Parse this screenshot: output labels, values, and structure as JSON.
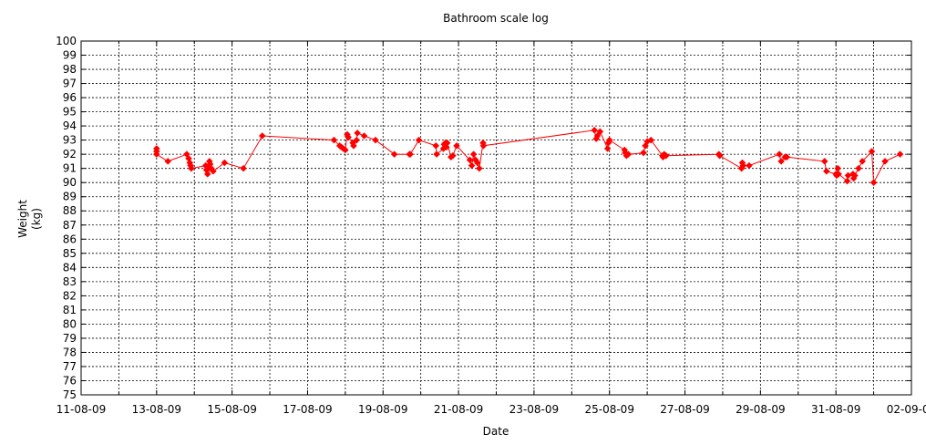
{
  "chart_data": {
    "type": "line",
    "title": "Bathroom scale log",
    "xlabel": "Date",
    "ylabel": [
      "Weight",
      "(kg)"
    ],
    "ylim": [
      75,
      100
    ],
    "xlim_days": [
      0,
      22
    ],
    "y_ticks": [
      75,
      76,
      77,
      78,
      79,
      80,
      81,
      82,
      83,
      84,
      85,
      86,
      87,
      88,
      89,
      90,
      91,
      92,
      93,
      94,
      95,
      96,
      97,
      98,
      99,
      100
    ],
    "x_ticks": [
      {
        "label": "11-08-09",
        "day": 0
      },
      {
        "label": "13-08-09",
        "day": 2
      },
      {
        "label": "15-08-09",
        "day": 4
      },
      {
        "label": "17-08-09",
        "day": 6
      },
      {
        "label": "19-08-09",
        "day": 8
      },
      {
        "label": "21-08-09",
        "day": 10
      },
      {
        "label": "23-08-09",
        "day": 12
      },
      {
        "label": "25-08-09",
        "day": 14
      },
      {
        "label": "27-08-09",
        "day": 16
      },
      {
        "label": "29-08-09",
        "day": 18
      },
      {
        "label": "31-08-09",
        "day": 20
      },
      {
        "label": "02-09-09",
        "day": 22
      }
    ],
    "grid": true,
    "series_color": "#ff0000",
    "points": [
      {
        "x": 2.0,
        "y": 92.4
      },
      {
        "x": 2.0,
        "y": 92.2
      },
      {
        "x": 2.0,
        "y": 92.0
      },
      {
        "x": 2.3,
        "y": 91.5
      },
      {
        "x": 2.8,
        "y": 92.0
      },
      {
        "x": 2.85,
        "y": 91.7
      },
      {
        "x": 2.88,
        "y": 91.4
      },
      {
        "x": 2.9,
        "y": 91.2
      },
      {
        "x": 2.92,
        "y": 91.0
      },
      {
        "x": 3.3,
        "y": 91.2
      },
      {
        "x": 3.32,
        "y": 90.9
      },
      {
        "x": 3.35,
        "y": 90.6
      },
      {
        "x": 3.38,
        "y": 91.0
      },
      {
        "x": 3.4,
        "y": 91.5
      },
      {
        "x": 3.42,
        "y": 91.3
      },
      {
        "x": 3.45,
        "y": 91.0
      },
      {
        "x": 3.5,
        "y": 90.8
      },
      {
        "x": 3.8,
        "y": 91.4
      },
      {
        "x": 4.3,
        "y": 91.0
      },
      {
        "x": 4.8,
        "y": 93.3
      },
      {
        "x": 6.7,
        "y": 93.0
      },
      {
        "x": 6.85,
        "y": 92.6
      },
      {
        "x": 6.9,
        "y": 92.5
      },
      {
        "x": 6.95,
        "y": 92.4
      },
      {
        "x": 7.0,
        "y": 92.3
      },
      {
        "x": 7.05,
        "y": 93.4
      },
      {
        "x": 7.08,
        "y": 93.2
      },
      {
        "x": 7.2,
        "y": 92.8
      },
      {
        "x": 7.22,
        "y": 92.6
      },
      {
        "x": 7.3,
        "y": 93.0
      },
      {
        "x": 7.32,
        "y": 93.5
      },
      {
        "x": 7.5,
        "y": 93.3
      },
      {
        "x": 7.8,
        "y": 93.0
      },
      {
        "x": 8.3,
        "y": 92.0
      },
      {
        "x": 8.7,
        "y": 92.0
      },
      {
        "x": 8.72,
        "y": 92.0
      },
      {
        "x": 8.95,
        "y": 93.0
      },
      {
        "x": 9.4,
        "y": 92.6
      },
      {
        "x": 9.42,
        "y": 92.0
      },
      {
        "x": 9.6,
        "y": 92.4
      },
      {
        "x": 9.62,
        "y": 92.7
      },
      {
        "x": 9.65,
        "y": 92.8
      },
      {
        "x": 9.68,
        "y": 92.5
      },
      {
        "x": 9.7,
        "y": 92.8
      },
      {
        "x": 9.8,
        "y": 91.8
      },
      {
        "x": 9.85,
        "y": 91.9
      },
      {
        "x": 9.95,
        "y": 92.6
      },
      {
        "x": 10.3,
        "y": 91.6
      },
      {
        "x": 10.35,
        "y": 91.2
      },
      {
        "x": 10.4,
        "y": 92.0
      },
      {
        "x": 10.45,
        "y": 91.6
      },
      {
        "x": 10.5,
        "y": 91.4
      },
      {
        "x": 10.55,
        "y": 91.0
      },
      {
        "x": 10.65,
        "y": 92.8
      },
      {
        "x": 10.66,
        "y": 92.6
      },
      {
        "x": 13.6,
        "y": 93.7
      },
      {
        "x": 13.65,
        "y": 93.1
      },
      {
        "x": 13.68,
        "y": 93.3
      },
      {
        "x": 13.75,
        "y": 93.6
      },
      {
        "x": 13.95,
        "y": 92.4
      },
      {
        "x": 13.97,
        "y": 92.8
      },
      {
        "x": 14.0,
        "y": 93.0
      },
      {
        "x": 14.4,
        "y": 92.3
      },
      {
        "x": 14.42,
        "y": 92.1
      },
      {
        "x": 14.45,
        "y": 91.9
      },
      {
        "x": 14.5,
        "y": 92.0
      },
      {
        "x": 14.9,
        "y": 92.1
      },
      {
        "x": 14.95,
        "y": 92.6
      },
      {
        "x": 15.0,
        "y": 92.9
      },
      {
        "x": 15.1,
        "y": 93.0
      },
      {
        "x": 15.4,
        "y": 91.9
      },
      {
        "x": 15.42,
        "y": 91.8
      },
      {
        "x": 15.45,
        "y": 92.0
      },
      {
        "x": 15.5,
        "y": 91.9
      },
      {
        "x": 16.9,
        "y": 92.0
      },
      {
        "x": 16.92,
        "y": 91.9
      },
      {
        "x": 17.5,
        "y": 91.0
      },
      {
        "x": 17.52,
        "y": 91.4
      },
      {
        "x": 17.54,
        "y": 91.2
      },
      {
        "x": 17.7,
        "y": 91.2
      },
      {
        "x": 18.5,
        "y": 92.0
      },
      {
        "x": 18.55,
        "y": 91.5
      },
      {
        "x": 18.65,
        "y": 91.8
      },
      {
        "x": 18.7,
        "y": 91.8
      },
      {
        "x": 19.7,
        "y": 91.5
      },
      {
        "x": 19.75,
        "y": 90.8
      },
      {
        "x": 20.0,
        "y": 90.6
      },
      {
        "x": 20.02,
        "y": 90.5
      },
      {
        "x": 20.05,
        "y": 91.0
      },
      {
        "x": 20.07,
        "y": 90.6
      },
      {
        "x": 20.3,
        "y": 90.1
      },
      {
        "x": 20.32,
        "y": 90.5
      },
      {
        "x": 20.45,
        "y": 90.6
      },
      {
        "x": 20.47,
        "y": 90.3
      },
      {
        "x": 20.5,
        "y": 90.5
      },
      {
        "x": 20.6,
        "y": 91.0
      },
      {
        "x": 20.7,
        "y": 91.5
      },
      {
        "x": 20.95,
        "y": 92.2
      },
      {
        "x": 21.0,
        "y": 90.0
      },
      {
        "x": 21.3,
        "y": 91.5
      },
      {
        "x": 21.7,
        "y": 92.0
      }
    ]
  }
}
